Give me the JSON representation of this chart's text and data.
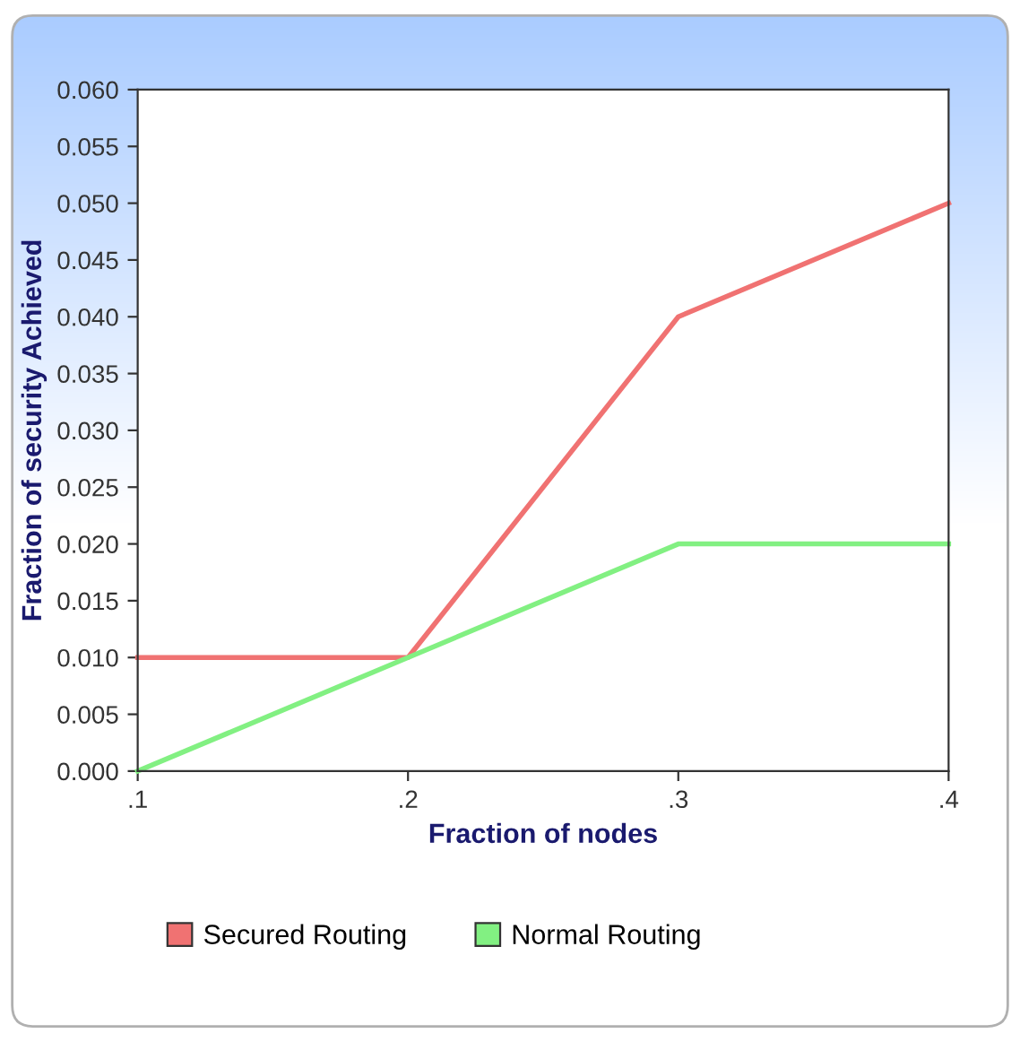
{
  "chart_data": {
    "type": "line",
    "xlabel": "Fraction of nodes",
    "ylabel": "Fraction of security Achieved",
    "x": [
      0.1,
      0.2,
      0.3,
      0.4
    ],
    "series": [
      {
        "name": "Secured Routing",
        "color": "#f07272",
        "values": [
          0.01,
          0.01,
          0.04,
          0.05
        ]
      },
      {
        "name": "Normal Routing",
        "color": "#82f082",
        "values": [
          0.0,
          0.01,
          0.02,
          0.02
        ]
      }
    ],
    "xlim": [
      0.1,
      0.4
    ],
    "xticks": [
      {
        "value": 0.1,
        "label": ".1"
      },
      {
        "value": 0.2,
        "label": ".2"
      },
      {
        "value": 0.3,
        "label": ".3"
      },
      {
        "value": 0.4,
        "label": ".4"
      }
    ],
    "ylim": [
      0.0,
      0.06
    ],
    "yticks": [
      {
        "value": 0.0,
        "label": "0.000"
      },
      {
        "value": 0.005,
        "label": "0.005"
      },
      {
        "value": 0.01,
        "label": "0.010"
      },
      {
        "value": 0.015,
        "label": "0.015"
      },
      {
        "value": 0.02,
        "label": "0.020"
      },
      {
        "value": 0.025,
        "label": "0.025"
      },
      {
        "value": 0.03,
        "label": "0.030"
      },
      {
        "value": 0.035,
        "label": "0.035"
      },
      {
        "value": 0.04,
        "label": "0.040"
      },
      {
        "value": 0.045,
        "label": "0.045"
      },
      {
        "value": 0.05,
        "label": "0.050"
      },
      {
        "value": 0.055,
        "label": "0.055"
      },
      {
        "value": 0.06,
        "label": "0.060"
      }
    ],
    "grid": false,
    "legend": "bottom",
    "marker": "none",
    "line_style": "solid"
  }
}
